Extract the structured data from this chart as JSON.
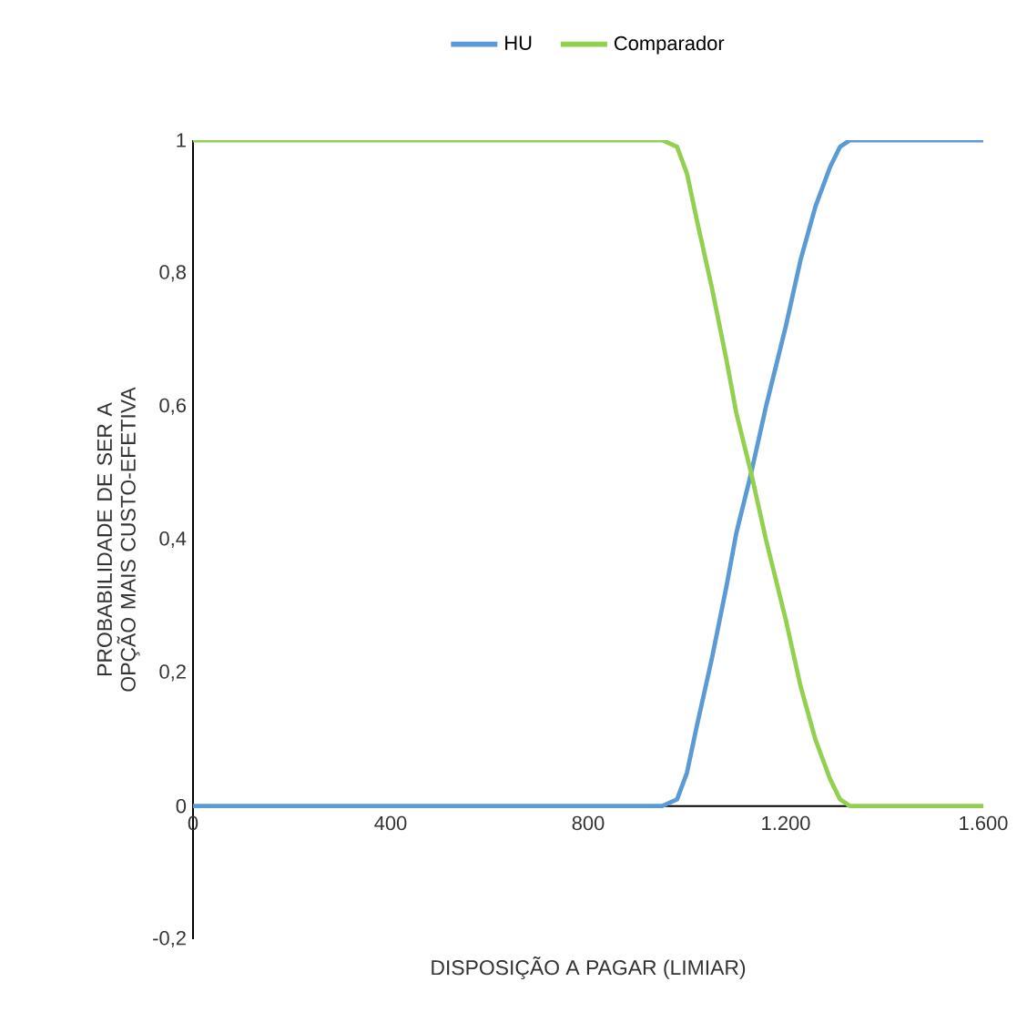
{
  "chart_data": {
    "type": "line",
    "xlabel": "DISPOSIÇÃO A PAGAR (LIMIAR)",
    "ylabel": "PROBABILIDADE DE SER A OPÇÃO MAIS CUSTO-EFETIVA",
    "xlim": [
      0,
      1600
    ],
    "xticks": [
      0,
      400,
      800,
      {
        "value": 1200,
        "label": "1.200"
      },
      {
        "value": 1600,
        "label": "1.600"
      }
    ],
    "ylim": [
      -0.2,
      1
    ],
    "yticks": [
      {
        "value": -0.2,
        "label": "-0,2"
      },
      0,
      {
        "value": 0.2,
        "label": "0,2"
      },
      {
        "value": 0.4,
        "label": "0,4"
      },
      {
        "value": 0.6,
        "label": "0,6"
      },
      {
        "value": 0.8,
        "label": "0,8"
      },
      1
    ],
    "legend": "top",
    "x": [
      0,
      200,
      400,
      600,
      800,
      900,
      950,
      980,
      1000,
      1020,
      1050,
      1080,
      1100,
      1130,
      1160,
      1200,
      1230,
      1260,
      1290,
      1310,
      1330,
      1400,
      1600
    ],
    "series": [
      {
        "name": "HU",
        "color": "#5b9bd5",
        "values": [
          0,
          0,
          0,
          0,
          0,
          0,
          0,
          0.01,
          0.05,
          0.12,
          0.22,
          0.33,
          0.41,
          0.5,
          0.6,
          0.72,
          0.82,
          0.9,
          0.96,
          0.99,
          1,
          1,
          1
        ]
      },
      {
        "name": "Comparador",
        "color": "#92d050",
        "values": [
          1,
          1,
          1,
          1,
          1,
          1,
          1,
          0.99,
          0.95,
          0.88,
          0.78,
          0.67,
          0.59,
          0.5,
          0.4,
          0.28,
          0.18,
          0.1,
          0.04,
          0.01,
          0,
          0,
          0
        ]
      }
    ]
  }
}
